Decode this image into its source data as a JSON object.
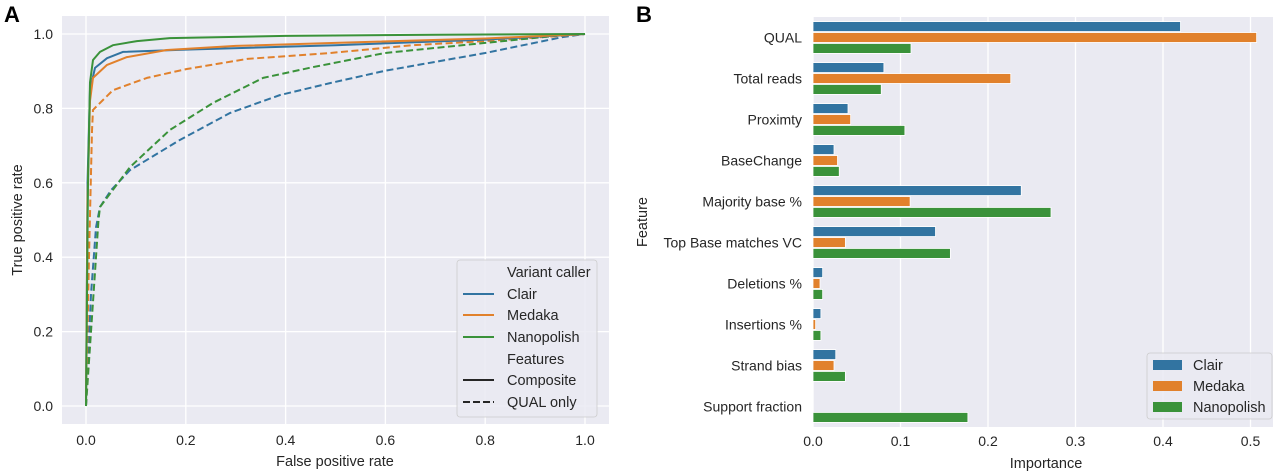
{
  "chart_data": [
    {
      "panel": "A",
      "type": "line",
      "title": "",
      "xlabel": "False positive rate",
      "ylabel": "True positive rate",
      "xlim": [
        -0.05,
        1.05
      ],
      "ylim": [
        -0.05,
        1.05
      ],
      "xticks": [
        "0.0",
        "0.2",
        "0.4",
        "0.6",
        "0.8",
        "1.0"
      ],
      "yticks": [
        "0.0",
        "0.2",
        "0.4",
        "0.6",
        "0.8",
        "1.0"
      ],
      "grid": true,
      "legend": {
        "placement": "lower-right",
        "title_callers": "Variant caller",
        "callers": [
          "Clair",
          "Medaka",
          "Nanopolish"
        ],
        "title_features": "Features",
        "features": [
          "Composite",
          "QUAL only"
        ]
      },
      "colors": {
        "Clair": "#3274a1",
        "Medaka": "#e1812c",
        "Nanopolish": "#3a923a"
      },
      "series": [
        {
          "name": "Clair",
          "feature": "Composite",
          "style": "solid",
          "x": [
            0,
            0.003,
            0.008,
            0.018,
            0.042,
            0.074,
            0.2,
            0.5,
            0.8,
            1.0
          ],
          "y": [
            0,
            0.6,
            0.85,
            0.909,
            0.935,
            0.952,
            0.958,
            0.97,
            0.985,
            1.0
          ]
        },
        {
          "name": "Medaka",
          "feature": "Composite",
          "style": "solid",
          "x": [
            0,
            0.003,
            0.008,
            0.014,
            0.042,
            0.082,
            0.162,
            0.3,
            0.5,
            0.8,
            1.0
          ],
          "y": [
            0,
            0.55,
            0.82,
            0.882,
            0.917,
            0.938,
            0.957,
            0.968,
            0.976,
            0.988,
            1.0
          ]
        },
        {
          "name": "Nanopolish",
          "feature": "Composite",
          "style": "solid",
          "x": [
            0,
            0.004,
            0.008,
            0.014,
            0.028,
            0.054,
            0.102,
            0.168,
            0.4,
            0.7,
            1.0
          ],
          "y": [
            0,
            0.6,
            0.87,
            0.93,
            0.952,
            0.97,
            0.981,
            0.989,
            0.995,
            0.998,
            1.0
          ]
        },
        {
          "name": "Clair",
          "feature": "QUAL only",
          "style": "dashed",
          "x": [
            0,
            0.01,
            0.02,
            0.028,
            0.05,
            0.088,
            0.188,
            0.289,
            0.389,
            0.489,
            0.599,
            0.8,
            0.956,
            1.0
          ],
          "y": [
            0,
            0.3,
            0.48,
            0.535,
            0.58,
            0.634,
            0.715,
            0.788,
            0.836,
            0.868,
            0.901,
            0.949,
            0.992,
            1.0
          ]
        },
        {
          "name": "Medaka",
          "feature": "QUAL only",
          "style": "dashed",
          "x": [
            0,
            0.006,
            0.012,
            0.014,
            0.054,
            0.122,
            0.202,
            0.323,
            0.489,
            0.655,
            0.8,
            0.95,
            1.0
          ],
          "y": [
            0,
            0.4,
            0.74,
            0.796,
            0.849,
            0.882,
            0.906,
            0.933,
            0.949,
            0.97,
            0.981,
            0.995,
            1.0
          ]
        },
        {
          "name": "Nanopolish",
          "feature": "QUAL only",
          "style": "dashed",
          "x": [
            0,
            0.015,
            0.025,
            0.028,
            0.088,
            0.168,
            0.255,
            0.355,
            0.455,
            0.599,
            0.8,
            0.956,
            1.0
          ],
          "y": [
            0,
            0.3,
            0.5,
            0.535,
            0.642,
            0.742,
            0.815,
            0.882,
            0.911,
            0.949,
            0.976,
            0.997,
            1.0
          ]
        }
      ]
    },
    {
      "panel": "B",
      "type": "bar",
      "orientation": "horizontal",
      "title": "",
      "xlabel": "Importance",
      "ylabel": "Feature",
      "xlim": [
        0,
        0.535
      ],
      "xticks": [
        "0.0",
        "0.1",
        "0.2",
        "0.3",
        "0.4",
        "0.5"
      ],
      "grid": true,
      "legend": {
        "placement": "lower-right",
        "entries": [
          "Clair",
          "Medaka",
          "Nanopolish"
        ]
      },
      "categories": [
        "QUAL",
        "Total reads",
        "Proximty",
        "BaseChange",
        "Majority base %",
        "Top Base matches VC",
        "Deletions %",
        "Insertions %",
        "Strand bias",
        "Support fraction"
      ],
      "series": [
        {
          "name": "Clair",
          "color": "#3274a1",
          "values": [
            0.42,
            0.081,
            0.04,
            0.024,
            0.238,
            0.14,
            0.011,
            0.009,
            0.026,
            0.0
          ]
        },
        {
          "name": "Medaka",
          "color": "#e1812c",
          "values": [
            0.507,
            0.226,
            0.043,
            0.028,
            0.111,
            0.037,
            0.008,
            0.003,
            0.024,
            0.0
          ]
        },
        {
          "name": "Nanopolish",
          "color": "#3a923a",
          "values": [
            0.112,
            0.078,
            0.105,
            0.03,
            0.272,
            0.157,
            0.011,
            0.009,
            0.037,
            0.177
          ]
        }
      ]
    }
  ],
  "panel_labels": [
    "A",
    "B"
  ]
}
